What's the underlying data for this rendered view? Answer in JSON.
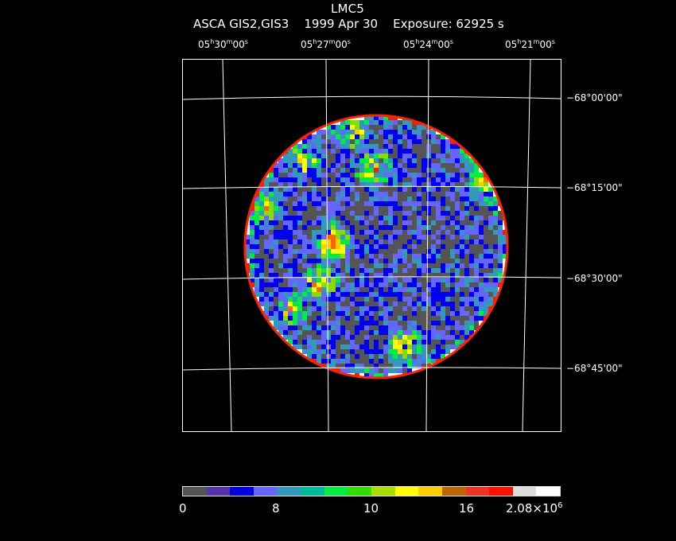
{
  "header": {
    "title": "LMC5",
    "subtitle": "ASCA GIS2,GIS3    1999 Apr 30    Exposure: 62925 s"
  },
  "axes": {
    "ra_labels": [
      {
        "h": "05",
        "m": "30",
        "s": "00"
      },
      {
        "h": "05",
        "m": "27",
        "s": "00"
      },
      {
        "h": "05",
        "m": "24",
        "s": "00"
      },
      {
        "h": "05",
        "m": "21",
        "s": "00"
      }
    ],
    "dec_labels": [
      "−68°00'00\"",
      "−68°15'00\"",
      "−68°30'00\"",
      "−68°45'00\""
    ]
  },
  "colorbar": {
    "colors": [
      "#555555",
      "#5533aa",
      "#0000dd",
      "#6666ff",
      "#3399bb",
      "#00bb99",
      "#00ee44",
      "#33dd00",
      "#aadd00",
      "#ffff00",
      "#ffcc00",
      "#bb6600",
      "#ee3322",
      "#ff1100",
      "#dddddd",
      "#ffffff"
    ],
    "labels": [
      {
        "text": "0"
      },
      {
        "text": "8"
      },
      {
        "text": "10"
      },
      {
        "text": "16"
      },
      {
        "text": "2.08×10",
        "sup": "6"
      }
    ]
  },
  "image": {
    "palette": [
      "#555555",
      "#3333bb",
      "#0000ee",
      "#6666ff",
      "#3399bb",
      "#00bb99",
      "#00ee44",
      "#88dd00",
      "#ffff00",
      "#ffcc00",
      "#ff6600",
      "#ee2200",
      "#ffffff"
    ]
  }
}
